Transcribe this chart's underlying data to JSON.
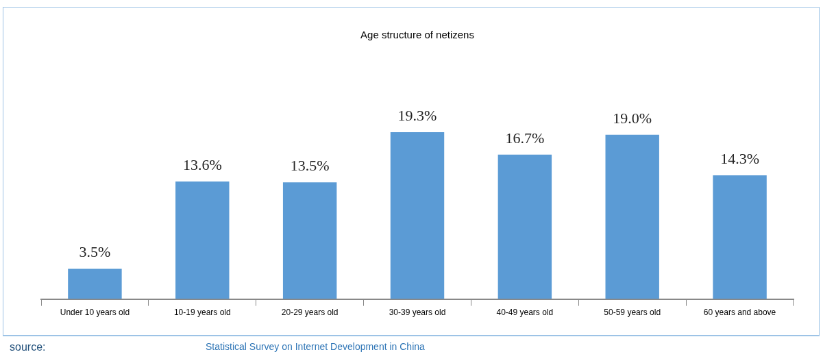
{
  "chart_data": {
    "type": "bar",
    "title": "Age structure of netizens",
    "categories": [
      "Under 10 years old",
      "10-19 years old",
      "20-29 years old",
      "30-39 years old",
      "40-49 years old",
      "50-59 years old",
      "60 years and above"
    ],
    "values": [
      3.5,
      13.6,
      13.5,
      19.3,
      16.7,
      19.0,
      14.3
    ],
    "value_labels": [
      "3.5%",
      "13.6%",
      "13.5%",
      "19.3%",
      "16.7%",
      "19.0%",
      "14.3%"
    ],
    "color": "#5b9bd5",
    "grid": false,
    "legend": false,
    "annotations": [
      "source:",
      "Statistical Survey on Internet Development in China"
    ]
  }
}
